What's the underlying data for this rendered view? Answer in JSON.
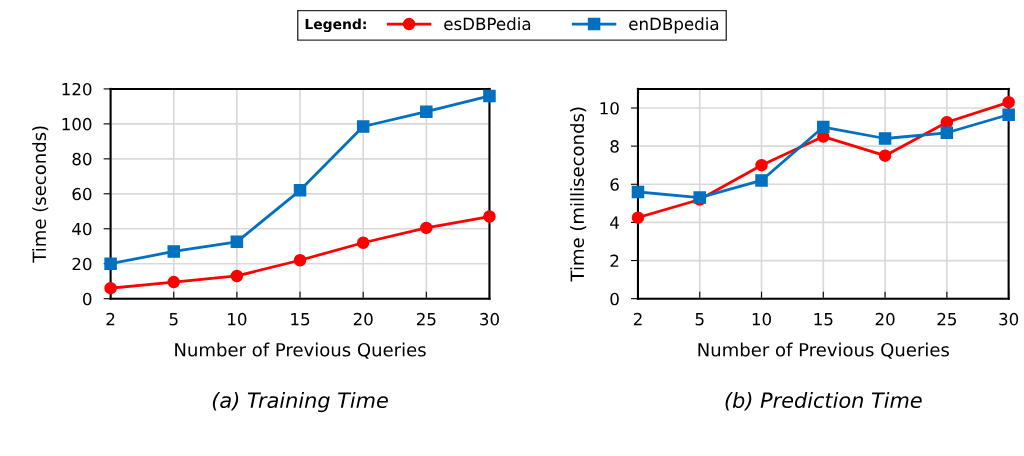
{
  "chart_data": [
    {
      "type": "line",
      "title": "(a) Training Time",
      "xlabel": "Number of Previous Queries",
      "ylabel": "Time (seconds)",
      "categories": [
        "2",
        "5",
        "10",
        "15",
        "20",
        "25",
        "30"
      ],
      "ylim": [
        0,
        120
      ],
      "yticks": [
        0,
        20,
        40,
        60,
        80,
        100,
        120
      ],
      "grid": true,
      "legend": "top",
      "legend_title": "Legend:",
      "series": [
        {
          "name": "esDBPedia",
          "color": "#ff0000",
          "marker": "circle",
          "values": [
            6,
            9.5,
            13,
            22,
            32,
            40.5,
            47
          ]
        },
        {
          "name": "enDBpedia",
          "color": "#0070c0",
          "marker": "square",
          "values": [
            20,
            27,
            32.5,
            62,
            98.5,
            107,
            116
          ]
        }
      ]
    },
    {
      "type": "line",
      "title": "(b) Prediction Time",
      "xlabel": "Number of Previous Queries",
      "ylabel": "Time (milliseconds)",
      "categories": [
        "2",
        "5",
        "10",
        "15",
        "20",
        "25",
        "30"
      ],
      "ylim": [
        0,
        11
      ],
      "yticks": [
        0,
        2,
        4,
        6,
        8,
        10
      ],
      "grid": true,
      "series": [
        {
          "color": "#ff0000",
          "marker": "circle",
          "values": [
            4.25,
            5.2,
            7.0,
            8.5,
            7.5,
            9.25,
            10.3
          ]
        },
        {
          "color": "#0070c0",
          "marker": "square",
          "values": [
            5.6,
            5.3,
            6.2,
            9.0,
            8.4,
            8.7,
            9.65
          ]
        }
      ]
    }
  ]
}
